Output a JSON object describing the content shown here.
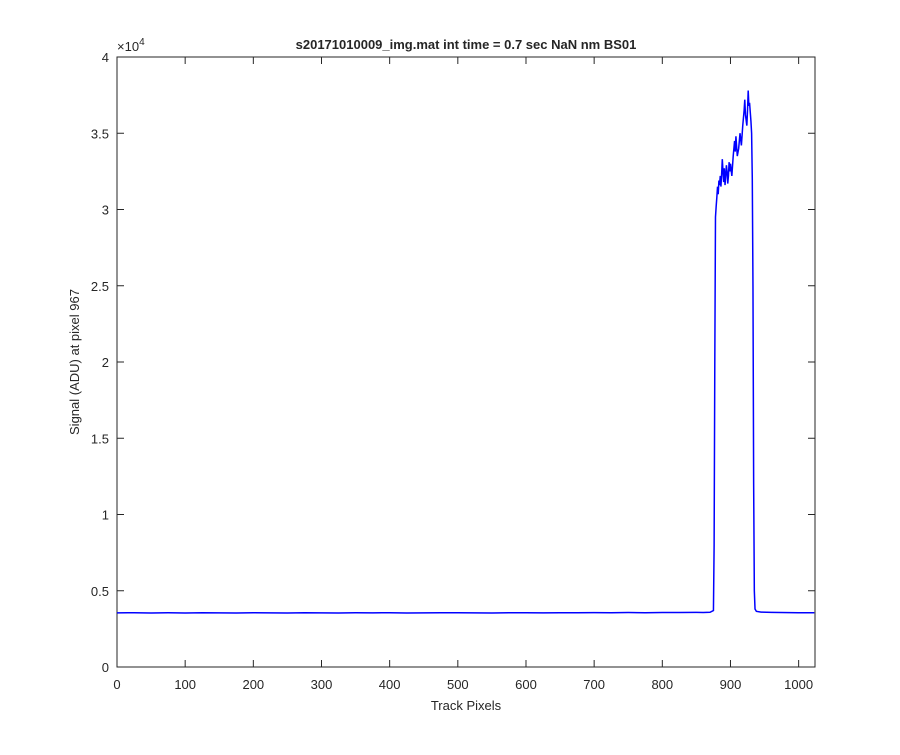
{
  "chart_data": {
    "type": "line",
    "title": "s20171010009_img.mat int time = 0.7 sec  NaN nm BS01",
    "x_label": "Track Pixels",
    "y_label": "Signal (ADU) at pixel 967",
    "y_multiplier": {
      "base": "×10",
      "exponent": "4"
    },
    "color": "#0000ff",
    "xlim": [
      0,
      1024
    ],
    "xticks": [
      0,
      100,
      200,
      300,
      400,
      500,
      600,
      700,
      800,
      900,
      1000
    ],
    "ylim": [
      0,
      40000
    ],
    "yticks": [
      0,
      {
        "value": 5000,
        "label": "0.5"
      },
      {
        "value": 10000,
        "label": "1"
      },
      {
        "value": 15000,
        "label": "1.5"
      },
      {
        "value": 20000,
        "label": "2"
      },
      {
        "value": 25000,
        "label": "2.5"
      },
      {
        "value": 30000,
        "label": "3"
      },
      {
        "value": 35000,
        "label": "3.5"
      },
      {
        "value": 40000,
        "label": "4"
      }
    ],
    "x": [
      0,
      25,
      50,
      75,
      100,
      125,
      150,
      175,
      200,
      225,
      250,
      275,
      300,
      325,
      350,
      375,
      400,
      425,
      450,
      475,
      500,
      525,
      550,
      575,
      600,
      625,
      650,
      675,
      700,
      725,
      750,
      775,
      800,
      825,
      850,
      860,
      870,
      875,
      876,
      877,
      878,
      879,
      880,
      881,
      882,
      883,
      884,
      885,
      886,
      887,
      888,
      889,
      890,
      891,
      892,
      893,
      894,
      895,
      896,
      897,
      898,
      899,
      900,
      902,
      904,
      906,
      907,
      908,
      910,
      912,
      914,
      916,
      918,
      920,
      921,
      922,
      924,
      925,
      926,
      927,
      928,
      930,
      931,
      932,
      933,
      934,
      935,
      936,
      938,
      945,
      960,
      1000,
      1023
    ],
    "values": [
      3550,
      3560,
      3540,
      3555,
      3545,
      3560,
      3550,
      3540,
      3555,
      3550,
      3545,
      3560,
      3550,
      3545,
      3555,
      3550,
      3560,
      3545,
      3550,
      3555,
      3560,
      3550,
      3545,
      3560,
      3555,
      3550,
      3560,
      3555,
      3565,
      3560,
      3570,
      3560,
      3575,
      3570,
      3580,
      3575,
      3590,
      3700,
      8000,
      20000,
      29500,
      30200,
      30800,
      31500,
      31000,
      31900,
      31600,
      32200,
      31500,
      32300,
      33300,
      32500,
      31800,
      32700,
      31600,
      32200,
      32900,
      32500,
      31700,
      32200,
      33100,
      32500,
      33000,
      32200,
      33500,
      34500,
      33800,
      34800,
      33500,
      34000,
      35000,
      34200,
      35500,
      36500,
      37200,
      36200,
      35500,
      36500,
      37800,
      36800,
      37000,
      35800,
      35000,
      32000,
      25000,
      12000,
      5000,
      3800,
      3650,
      3600,
      3580,
      3560,
      3555
    ]
  }
}
